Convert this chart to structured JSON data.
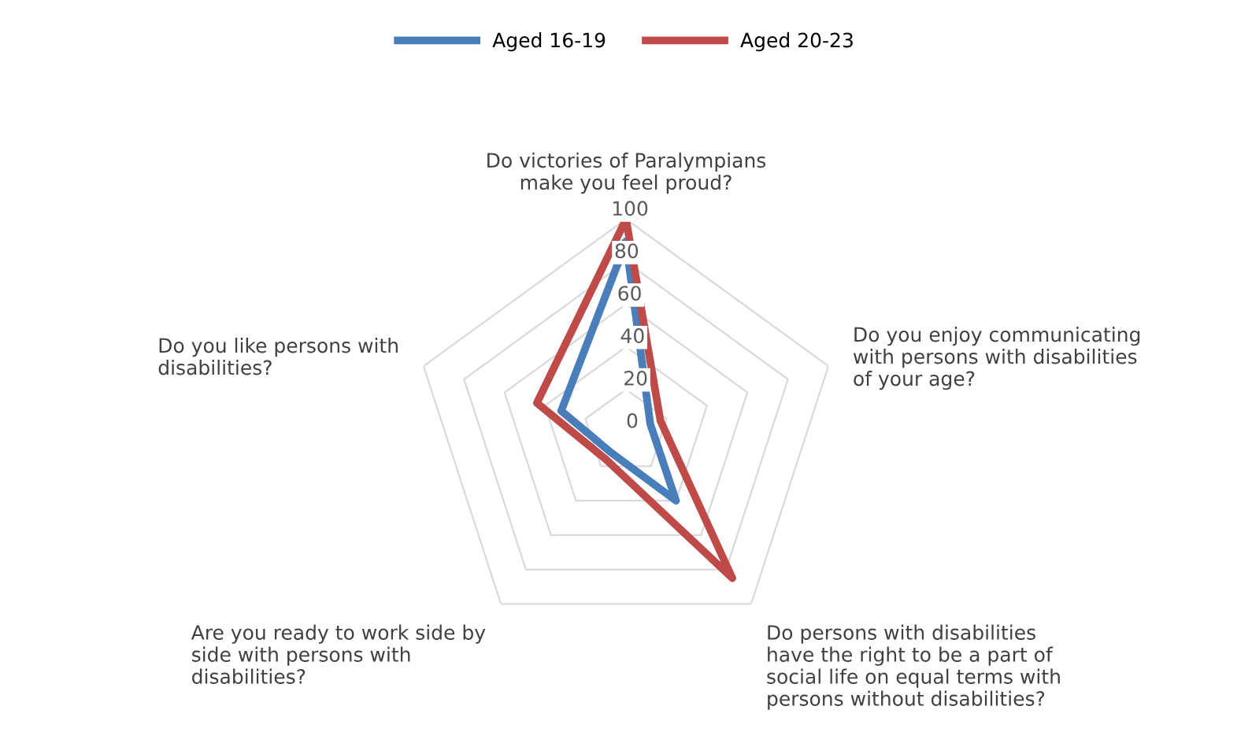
{
  "chart_data": {
    "type": "radar",
    "categories": [
      "Do victories of Paralympians\nmake you feel proud?",
      "Do you enjoy communicating\nwith persons with disabilities\nof your age?",
      "Do persons with disabilities\nhave the right to be a part of\nsocial life on equal terms with\npersons without disabilities?",
      "Are you ready to work side by\nside with persons with\ndisabilities?",
      "Do you like persons with\ndisabilities?"
    ],
    "series": [
      {
        "name": "Aged 16-19",
        "color": "#4a7ebb",
        "values": [
          89,
          12,
          40,
          12,
          32
        ]
      },
      {
        "name": "Aged 20-23",
        "color": "#be4b48",
        "values": [
          100,
          17,
          85,
          16,
          44
        ]
      }
    ],
    "ylim": [
      0,
      100
    ],
    "yticks": [
      0,
      20,
      40,
      60,
      80,
      100
    ],
    "grid": true,
    "legend": "top",
    "marker": "none"
  }
}
